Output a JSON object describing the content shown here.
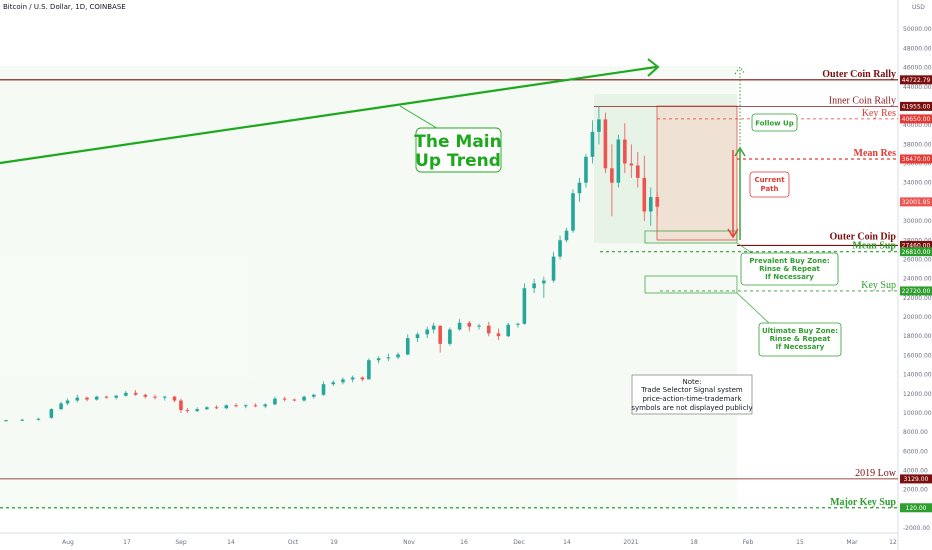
{
  "chart_title": "Bitcoin / U.S. Dollar, 1D, COINBASE",
  "currency": "USD",
  "chart_data": {
    "type": "candlestick",
    "x_tick_labels": [
      "Aug",
      "17",
      "Sep",
      "14",
      "Oct",
      "19",
      "Nov",
      "16",
      "Dec",
      "14",
      "2021",
      "18",
      "Feb",
      "15",
      "Mar",
      "12"
    ],
    "y_tick_labels": [
      "50000.00",
      "48000.00",
      "46000.00",
      "44000.00",
      "42000.00",
      "40000.00",
      "38000.00",
      "36000.00",
      "34000.00",
      "32000.00",
      "30000.00",
      "28000.00",
      "26000.00",
      "24000.00",
      "22000.00",
      "20000.00",
      "18000.00",
      "16000.00",
      "14000.00",
      "12000.00",
      "10000.00",
      "8000.00",
      "6000.00",
      "4000.00",
      "2000.00",
      "0.00",
      "-2000.00"
    ],
    "ylim": [
      -2300,
      52000
    ],
    "candles": [
      {
        "t": 0,
        "o": 9200,
        "h": 9300,
        "l": 9100,
        "c": 9250
      },
      {
        "t": 5,
        "o": 9250,
        "h": 9400,
        "l": 9150,
        "c": 9300
      },
      {
        "t": 10,
        "o": 9300,
        "h": 9500,
        "l": 9200,
        "c": 9400
      },
      {
        "t": 14,
        "o": 9500,
        "h": 10500,
        "l": 9400,
        "c": 10400
      },
      {
        "t": 17,
        "o": 10400,
        "h": 11200,
        "l": 10300,
        "c": 11000
      },
      {
        "t": 19,
        "o": 11000,
        "h": 11500,
        "l": 10800,
        "c": 11300
      },
      {
        "t": 22,
        "o": 11300,
        "h": 11900,
        "l": 11100,
        "c": 11600
      },
      {
        "t": 25,
        "o": 11600,
        "h": 11700,
        "l": 11200,
        "c": 11400
      },
      {
        "t": 28,
        "o": 11400,
        "h": 11800,
        "l": 11300,
        "c": 11700
      },
      {
        "t": 31,
        "o": 11700,
        "h": 11800,
        "l": 11500,
        "c": 11600
      },
      {
        "t": 34,
        "o": 11600,
        "h": 11900,
        "l": 11400,
        "c": 11800
      },
      {
        "t": 37,
        "o": 11800,
        "h": 12300,
        "l": 11700,
        "c": 12100
      },
      {
        "t": 40,
        "o": 12100,
        "h": 12400,
        "l": 11800,
        "c": 11900
      },
      {
        "t": 43,
        "o": 11900,
        "h": 12000,
        "l": 11500,
        "c": 11700
      },
      {
        "t": 46,
        "o": 11700,
        "h": 11900,
        "l": 11400,
        "c": 11600
      },
      {
        "t": 49,
        "o": 11600,
        "h": 11800,
        "l": 11300,
        "c": 11700
      },
      {
        "t": 52,
        "o": 11700,
        "h": 11800,
        "l": 11100,
        "c": 11300
      },
      {
        "t": 54,
        "o": 11300,
        "h": 11500,
        "l": 10000,
        "c": 10300
      },
      {
        "t": 56,
        "o": 10300,
        "h": 10500,
        "l": 10000,
        "c": 10200
      },
      {
        "t": 59,
        "o": 10200,
        "h": 10600,
        "l": 10100,
        "c": 10400
      },
      {
        "t": 62,
        "o": 10400,
        "h": 10700,
        "l": 10300,
        "c": 10600
      },
      {
        "t": 65,
        "o": 10600,
        "h": 10800,
        "l": 10400,
        "c": 10500
      },
      {
        "t": 68,
        "o": 10500,
        "h": 10900,
        "l": 10400,
        "c": 10800
      },
      {
        "t": 71,
        "o": 10800,
        "h": 11000,
        "l": 10600,
        "c": 10700
      },
      {
        "t": 74,
        "o": 10700,
        "h": 10900,
        "l": 10500,
        "c": 10800
      },
      {
        "t": 77,
        "o": 10800,
        "h": 11000,
        "l": 10600,
        "c": 10700
      },
      {
        "t": 80,
        "o": 10700,
        "h": 11000,
        "l": 10500,
        "c": 10900
      },
      {
        "t": 83,
        "o": 10900,
        "h": 11700,
        "l": 10800,
        "c": 11500
      },
      {
        "t": 86,
        "o": 11500,
        "h": 11700,
        "l": 11200,
        "c": 11400
      },
      {
        "t": 89,
        "o": 11400,
        "h": 11500,
        "l": 11200,
        "c": 11300
      },
      {
        "t": 92,
        "o": 11300,
        "h": 11800,
        "l": 11200,
        "c": 11700
      },
      {
        "t": 95,
        "o": 11700,
        "h": 12000,
        "l": 11500,
        "c": 11900
      },
      {
        "t": 98,
        "o": 11900,
        "h": 13300,
        "l": 11800,
        "c": 13000
      },
      {
        "t": 101,
        "o": 13000,
        "h": 13400,
        "l": 12800,
        "c": 13200
      },
      {
        "t": 104,
        "o": 13200,
        "h": 13700,
        "l": 13000,
        "c": 13500
      },
      {
        "t": 107,
        "o": 13500,
        "h": 13900,
        "l": 13200,
        "c": 13700
      },
      {
        "t": 110,
        "o": 13700,
        "h": 13800,
        "l": 13300,
        "c": 13500
      },
      {
        "t": 112,
        "o": 13500,
        "h": 15700,
        "l": 13500,
        "c": 15500
      },
      {
        "t": 115,
        "o": 15500,
        "h": 15900,
        "l": 15200,
        "c": 15700
      },
      {
        "t": 118,
        "o": 15700,
        "h": 16200,
        "l": 15400,
        "c": 15800
      },
      {
        "t": 121,
        "o": 15800,
        "h": 16300,
        "l": 15600,
        "c": 16100
      },
      {
        "t": 124,
        "o": 16100,
        "h": 18200,
        "l": 16000,
        "c": 17800
      },
      {
        "t": 127,
        "o": 17800,
        "h": 18400,
        "l": 17400,
        "c": 18200
      },
      {
        "t": 130,
        "o": 18200,
        "h": 19000,
        "l": 17800,
        "c": 18700
      },
      {
        "t": 132,
        "o": 18700,
        "h": 19400,
        "l": 18300,
        "c": 19100
      },
      {
        "t": 134,
        "o": 19100,
        "h": 19100,
        "l": 16300,
        "c": 17200
      },
      {
        "t": 137,
        "o": 17200,
        "h": 18900,
        "l": 17000,
        "c": 18700
      },
      {
        "t": 140,
        "o": 18700,
        "h": 19800,
        "l": 18600,
        "c": 19400
      },
      {
        "t": 143,
        "o": 19400,
        "h": 19600,
        "l": 18500,
        "c": 19000
      },
      {
        "t": 146,
        "o": 19000,
        "h": 19300,
        "l": 18700,
        "c": 19100
      },
      {
        "t": 149,
        "o": 19100,
        "h": 19500,
        "l": 18000,
        "c": 18300
      },
      {
        "t": 152,
        "o": 18300,
        "h": 18800,
        "l": 17600,
        "c": 18000
      },
      {
        "t": 155,
        "o": 18000,
        "h": 19400,
        "l": 17900,
        "c": 19200
      },
      {
        "t": 158,
        "o": 19200,
        "h": 19400,
        "l": 18900,
        "c": 19300
      },
      {
        "t": 160,
        "o": 19300,
        "h": 23500,
        "l": 19200,
        "c": 23000
      },
      {
        "t": 163,
        "o": 23000,
        "h": 24000,
        "l": 22500,
        "c": 23500
      },
      {
        "t": 166,
        "o": 23500,
        "h": 24200,
        "l": 22000,
        "c": 23800
      },
      {
        "t": 169,
        "o": 23800,
        "h": 26800,
        "l": 23600,
        "c": 26300
      },
      {
        "t": 171,
        "o": 26300,
        "h": 28500,
        "l": 26000,
        "c": 28000
      },
      {
        "t": 173,
        "o": 28000,
        "h": 29300,
        "l": 27800,
        "c": 29000
      },
      {
        "t": 175,
        "o": 29000,
        "h": 33300,
        "l": 28800,
        "c": 32900
      },
      {
        "t": 177,
        "o": 32900,
        "h": 34500,
        "l": 32000,
        "c": 34000
      },
      {
        "t": 179,
        "o": 34000,
        "h": 37000,
        "l": 33500,
        "c": 36700
      },
      {
        "t": 181,
        "o": 36700,
        "h": 40500,
        "l": 36000,
        "c": 39300
      },
      {
        "t": 183,
        "o": 39300,
        "h": 41900,
        "l": 38000,
        "c": 40600
      },
      {
        "t": 185,
        "o": 40600,
        "h": 41300,
        "l": 35000,
        "c": 35500
      },
      {
        "t": 187,
        "o": 35500,
        "h": 38000,
        "l": 30500,
        "c": 34000
      },
      {
        "t": 189,
        "o": 34000,
        "h": 39000,
        "l": 33500,
        "c": 38500
      },
      {
        "t": 191,
        "o": 38500,
        "h": 40200,
        "l": 35000,
        "c": 36000
      },
      {
        "t": 193,
        "o": 36000,
        "h": 38000,
        "l": 34500,
        "c": 35800
      },
      {
        "t": 195,
        "o": 35800,
        "h": 37200,
        "l": 33500,
        "c": 34500
      },
      {
        "t": 197,
        "o": 34500,
        "h": 36800,
        "l": 30000,
        "c": 31000
      },
      {
        "t": 199,
        "o": 31000,
        "h": 33500,
        "l": 29500,
        "c": 32500
      },
      {
        "t": 201,
        "o": 32500,
        "h": 33000,
        "l": 30500,
        "c": 31500
      }
    ]
  },
  "annotations": {
    "main_trend": [
      "The Main",
      "Up Trend"
    ],
    "follow_up": "Follow Up",
    "current_path": [
      "Current",
      "Path"
    ],
    "prevalent_zone": [
      "Prevalent Buy Zone:",
      "Rinse & Repeat",
      "If Necessary"
    ],
    "ultimate_zone": [
      "Ultimate Buy Zone:",
      "Rinse & Repeat",
      "If Necessary"
    ],
    "note": [
      "Note:",
      "Trade Selector Signal system",
      "price-action-time-trademark",
      "symbols are not displayed publicly"
    ]
  },
  "levels": [
    {
      "key": "outer_rally",
      "label": "Outer Coin Rally",
      "tag": "44722.79",
      "value": 44722.79,
      "color": "#7b0f0f",
      "tag_color": "#7b0f0f",
      "style": "solid",
      "bold": true
    },
    {
      "key": "inner_rally",
      "label": "Inner Coin Rally",
      "tag": "41955.00",
      "value": 41955,
      "color": "#8b1a1a",
      "tag_color": "#7b0f0f",
      "style": "solid",
      "bold": false
    },
    {
      "key": "key_res",
      "label": "Key Res",
      "tag": "40650.00",
      "value": 40650,
      "color": "#e53935",
      "tag_color": "#e53935",
      "style": "dashed",
      "bold": false
    },
    {
      "key": "mean_res",
      "label": "Mean Res",
      "tag": "36470.00",
      "value": 36470,
      "color": "#e53935",
      "tag_color": "#e53935",
      "style": "dashed",
      "bold": true
    },
    {
      "key": "last",
      "label": "",
      "tag": "32001.95",
      "value": 32001.95,
      "color": "#ef5350",
      "tag_color": "#ef5350",
      "style": "none",
      "bold": false
    },
    {
      "key": "outer_dip",
      "label": "Outer Coin Dip",
      "tag": "27460.00",
      "value": 27460,
      "color": "#7b0f0f",
      "tag_color": "#7b0f0f",
      "style": "solid",
      "bold": true
    },
    {
      "key": "mean_sup",
      "label": "Mean Sup",
      "tag": "26810.00",
      "value": 26810,
      "color": "#2e9e2e",
      "tag_color": "#2e9e2e",
      "style": "dashed",
      "bold": true
    },
    {
      "key": "key_sup",
      "label": "Key Sup",
      "tag": "22720.00",
      "value": 22720,
      "color": "#2e9e2e",
      "tag_color": "#2e9e2e",
      "style": "dashed",
      "bold": false
    },
    {
      "key": "low2019",
      "label": "2019 Low",
      "tag": "3129.00",
      "value": 3129,
      "color": "#7b0f0f",
      "tag_color": "#7b0f0f",
      "style": "solid",
      "bold": false
    },
    {
      "key": "major_key_sup",
      "label": "Major Key Sup",
      "tag": "120.00",
      "value": 120,
      "color": "#2e9e2e",
      "tag_color": "#2e9e2e",
      "style": "dashed",
      "bold": true
    }
  ],
  "colors": {
    "up": "#26a69a",
    "down": "#ef5350",
    "trend": "#1ea81e",
    "res": "#e53935",
    "sup": "#2e9e2e"
  }
}
